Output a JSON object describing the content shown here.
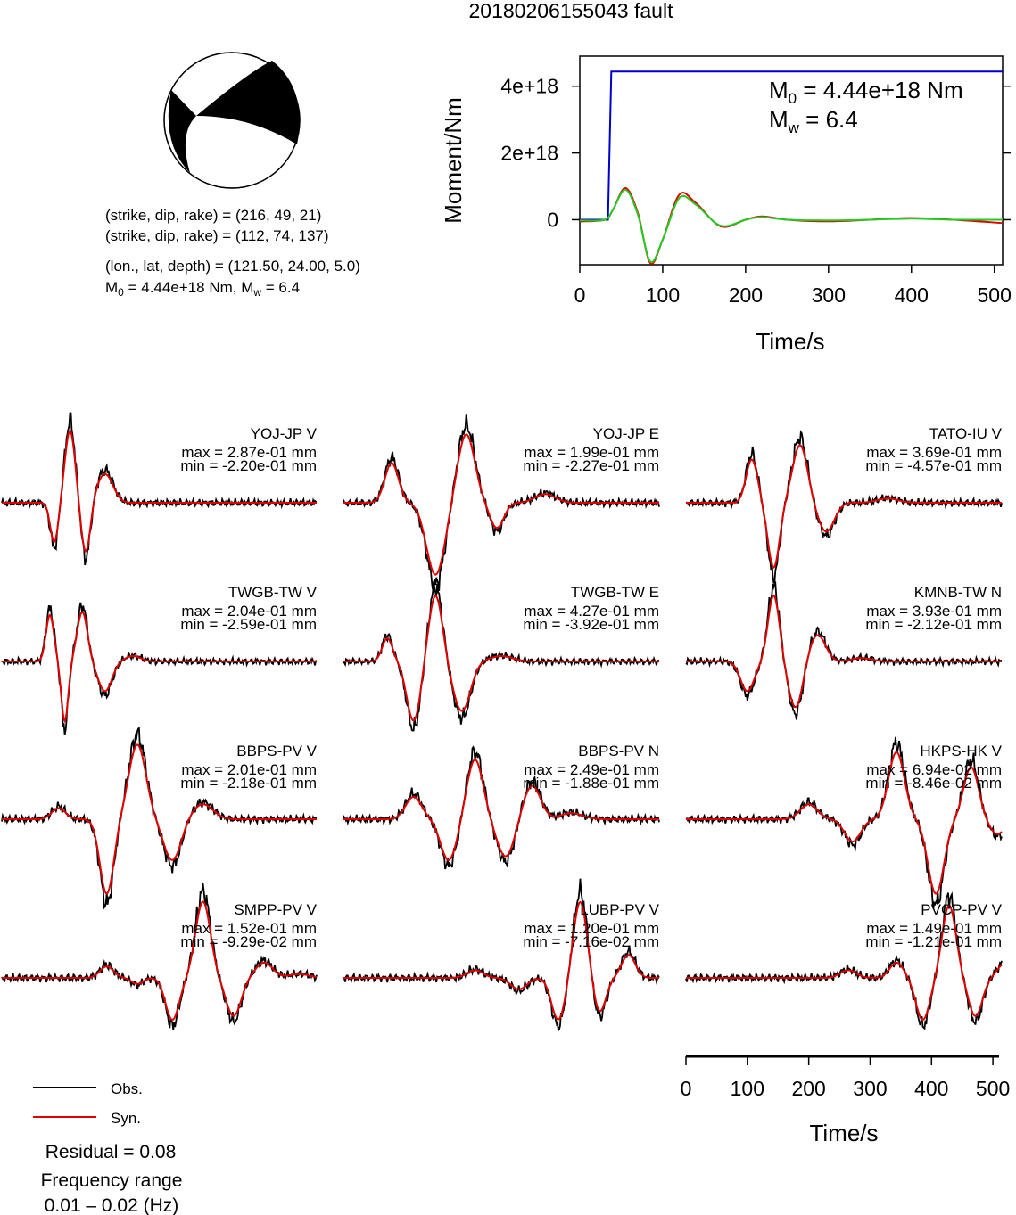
{
  "title": "20180206155043 fault",
  "mechanism": {
    "line1": "(strike, dip, rake) = (216, 49, 21)",
    "line2": "(strike, dip, rake) = (112, 74, 137)",
    "location": "(lon., lat, depth) = (121.50, 24.00, 5.0)",
    "moment_prefix": "M",
    "moment_sub": "0",
    "moment_rest": " = 4.44e+18 Nm, M",
    "mw_sub": "w",
    "mw_rest": " = 6.4"
  },
  "moment_panel": {
    "m0_label": "M",
    "m0_sub": "0",
    "m0_value": " = 4.44e+18 Nm",
    "mw_label": "M",
    "mw_sub": "w",
    "mw_value": " = 6.4"
  },
  "legend": {
    "obs": "Obs.",
    "syn": "Syn.",
    "residual": "Residual = 0.08",
    "freq_title": "Frequency range",
    "freq_value": "0.01 – 0.02 (Hz)"
  },
  "colors": {
    "observed": "#000000",
    "synthetic": "#e00000",
    "moment": "#0000cc",
    "green": "#22cc22"
  },
  "chart_data": [
    {
      "type": "line",
      "xlabel": "Time/s",
      "ylabel": "Moment/Nm",
      "xlim": [
        0,
        510
      ],
      "ylim": [
        -1.35e+18,
        4.9e+18
      ],
      "xticks": [
        "0",
        "100",
        "200",
        "300",
        "400",
        "500"
      ],
      "yticks": [
        "0",
        "2e+18",
        "4e+18"
      ],
      "series": [
        {
          "x": [
            0,
            34,
            38,
            510
          ],
          "values": [
            0,
            0,
            4.44e+18,
            4.44e+18
          ]
        },
        {
          "x": [
            0,
            30,
            40,
            55,
            70,
            85,
            100,
            120,
            140,
            170,
            200,
            220,
            250,
            300,
            350,
            400,
            450,
            510
          ],
          "values": [
            -5e+16,
            0,
            3e+17,
            9.5e+17,
            2e+17,
            -1.3e+18,
            -6e+17,
            7.5e+17,
            5e+17,
            -2e+17,
            0,
            1e+17,
            0,
            -5e+16,
            0,
            5e+16,
            0,
            -1e+17
          ]
        },
        {
          "x": [
            0,
            30,
            40,
            55,
            70,
            85,
            100,
            120,
            140,
            170,
            200,
            220,
            250,
            300,
            350,
            400,
            450,
            510
          ],
          "values": [
            -2e+16,
            0,
            3e+17,
            9e+17,
            1.5e+17,
            -1.25e+18,
            -6e+17,
            6.5e+17,
            4.5e+17,
            -1.8e+17,
            0,
            8e+16,
            0,
            -2e+16,
            0,
            3e+16,
            0,
            0
          ]
        }
      ]
    },
    {
      "type": "line",
      "xlabel": "Time/s",
      "xlim": [
        0,
        510
      ],
      "xticks": [
        "0",
        "100",
        "200",
        "300",
        "400",
        "500"
      ],
      "stations": [
        {
          "name": "YOJ-JP V",
          "max": "max = 2.87e-01 mm",
          "min": "min = -2.20e-01 mm"
        },
        {
          "name": "YOJ-JP E",
          "max": "max = 1.99e-01 mm",
          "min": "min = -2.27e-01 mm"
        },
        {
          "name": "TATO-IU V",
          "max": "max = 3.69e-01 mm",
          "min": "min = -4.57e-01 mm"
        },
        {
          "name": "TWGB-TW V",
          "max": "max = 2.04e-01 mm",
          "min": "min = -2.59e-01 mm"
        },
        {
          "name": "TWGB-TW E",
          "max": "max = 4.27e-01 mm",
          "min": "min = -3.92e-01 mm"
        },
        {
          "name": "KMNB-TW N",
          "max": "max = 3.93e-01 mm",
          "min": "min = -2.12e-01 mm"
        },
        {
          "name": "BBPS-PV V",
          "max": "max = 2.01e-01 mm",
          "min": "min = -2.18e-01 mm"
        },
        {
          "name": "BBPS-PV N",
          "max": "max = 2.49e-01 mm",
          "min": "min = -1.88e-01 mm"
        },
        {
          "name": "HKPS-HK V",
          "max": "max = 6.94e-02 mm",
          "min": "min = -8.46e-02 mm"
        },
        {
          "name": "SMPP-PV V",
          "max": "max = 1.52e-01 mm",
          "min": "min = -9.29e-02 mm"
        },
        {
          "name": "LUBP-PV V",
          "max": "max = 1.20e-01 mm",
          "min": "min = -7.16e-02 mm"
        },
        {
          "name": "PVCP-PV V",
          "max": "max = 1.49e-01 mm",
          "min": "min = -1.21e-01 mm"
        }
      ],
      "waveforms": [
        {
          "pulses": [
            [
              60,
              -0.55,
              7
            ],
            [
              78,
              1.0,
              9
            ],
            [
              96,
              -0.7,
              8
            ],
            [
              118,
              0.4,
              14
            ]
          ]
        },
        {
          "pulses": [
            [
              55,
              0.55,
              12
            ],
            [
              105,
              -1.0,
              16
            ],
            [
              140,
              0.95,
              15
            ],
            [
              175,
              -0.35,
              12
            ],
            [
              230,
              0.12,
              18
            ]
          ]
        },
        {
          "pulses": [
            [
              75,
              0.6,
              10
            ],
            [
              100,
              -0.9,
              10
            ],
            [
              130,
              0.8,
              13
            ],
            [
              160,
              -0.4,
              14
            ],
            [
              230,
              0.06,
              18
            ]
          ]
        },
        {
          "pulses": [
            [
              55,
              0.7,
              7
            ],
            [
              72,
              -0.9,
              6
            ],
            [
              92,
              0.75,
              9
            ],
            [
              118,
              -0.45,
              12
            ],
            [
              150,
              0.08,
              14
            ]
          ]
        },
        {
          "pulses": [
            [
              50,
              0.35,
              9
            ],
            [
              80,
              -0.9,
              12
            ],
            [
              105,
              1.0,
              12
            ],
            [
              135,
              -0.75,
              15
            ],
            [
              180,
              0.08,
              20
            ]
          ]
        },
        {
          "pulses": [
            [
              70,
              -0.45,
              12
            ],
            [
              100,
              1.0,
              10
            ],
            [
              125,
              -0.7,
              12
            ],
            [
              150,
              0.4,
              14
            ],
            [
              200,
              0.05,
              18
            ]
          ]
        },
        {
          "pulses": [
            [
              65,
              0.15,
              12
            ],
            [
              120,
              -1.0,
              12
            ],
            [
              155,
              1.0,
              15
            ],
            [
              195,
              -0.55,
              15
            ],
            [
              230,
              0.2,
              18
            ]
          ]
        },
        {
          "pulses": [
            [
              80,
              0.3,
              14
            ],
            [
              120,
              -0.55,
              14
            ],
            [
              150,
              0.8,
              14
            ],
            [
              185,
              -0.5,
              15
            ],
            [
              215,
              0.45,
              15
            ],
            [
              260,
              0.08,
              20
            ]
          ]
        },
        {
          "pulses": [
            [
              140,
              0.2,
              15
            ],
            [
              190,
              -0.3,
              14
            ],
            [
              240,
              0.9,
              14
            ],
            [
              285,
              -1.0,
              14
            ],
            [
              325,
              0.7,
              13
            ],
            [
              355,
              -0.2,
              13
            ]
          ]
        },
        {
          "pulses": [
            [
              120,
              0.15,
              12
            ],
            [
              155,
              -0.08,
              10
            ],
            [
              195,
              -0.55,
              12
            ],
            [
              230,
              1.0,
              13
            ],
            [
              265,
              -0.5,
              13
            ],
            [
              300,
              0.2,
              15
            ],
            [
              340,
              0.05,
              18
            ]
          ]
        },
        {
          "pulses": [
            [
              150,
              0.1,
              14
            ],
            [
              200,
              -0.15,
              14
            ],
            [
              245,
              -0.55,
              12
            ],
            [
              270,
              1.0,
              12
            ],
            [
              292,
              -0.45,
              11
            ],
            [
              325,
              0.3,
              12
            ]
          ]
        },
        {
          "pulses": [
            [
              185,
              0.1,
              14
            ],
            [
              240,
              0.2,
              12
            ],
            [
              270,
              -0.55,
              12
            ],
            [
              300,
              0.95,
              12
            ],
            [
              330,
              -0.5,
              12
            ],
            [
              365,
              0.2,
              14
            ]
          ]
        }
      ]
    }
  ]
}
